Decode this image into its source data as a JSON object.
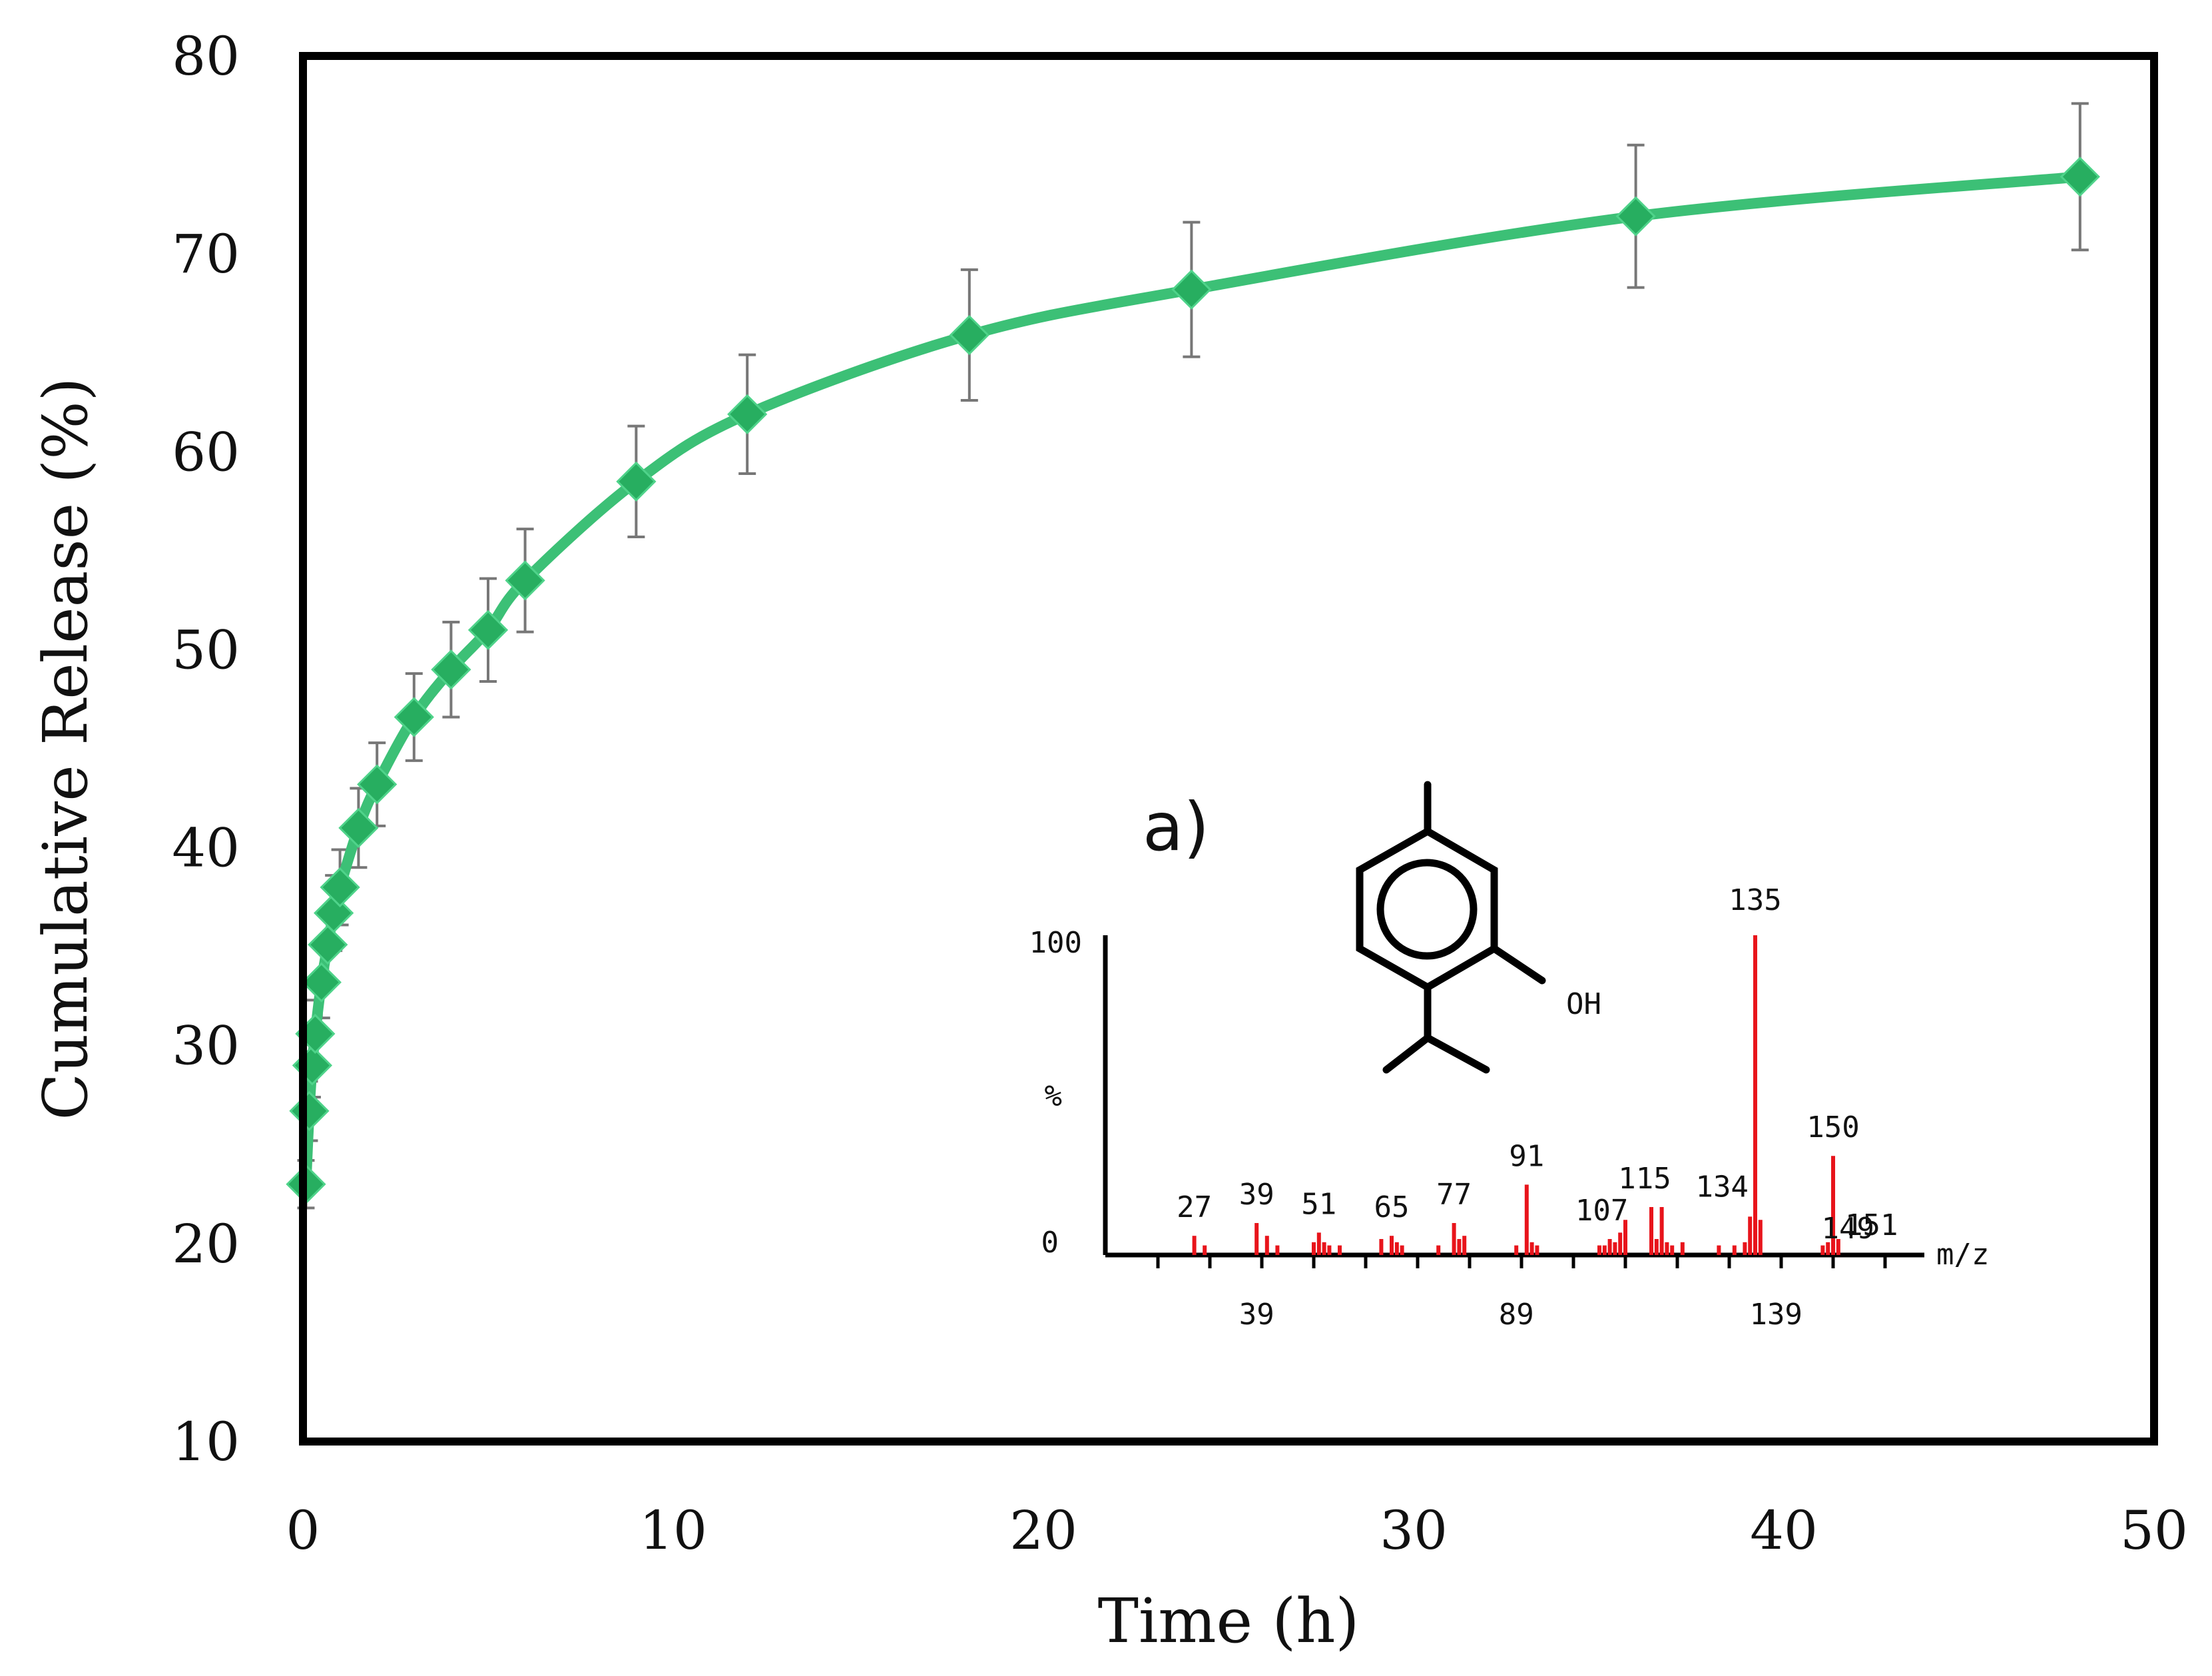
{
  "chart_data": {
    "type": "line",
    "title": "",
    "xlabel": "Time (h)",
    "ylabel": "Cumulative Release (%)",
    "xlim": [
      0,
      50
    ],
    "ylim": [
      10,
      80
    ],
    "xticks": [
      0,
      10,
      20,
      30,
      40,
      50
    ],
    "yticks": [
      10,
      20,
      30,
      40,
      50,
      60,
      70,
      80
    ],
    "grid": false,
    "marker": "diamond",
    "line_color": "#3cc076",
    "marker_color": "#27ae60",
    "error_bar_color": "#777777",
    "series": [
      {
        "name": "Cumulative Release",
        "x": [
          0.08,
          0.17,
          0.25,
          0.33,
          0.5,
          0.67,
          0.83,
          1,
          1.5,
          2,
          3,
          4,
          5,
          6,
          9,
          12,
          18,
          24,
          36,
          48
        ],
        "y": [
          23.0,
          26.7,
          29.0,
          30.6,
          33.2,
          35.1,
          36.7,
          38.0,
          41.0,
          43.2,
          46.6,
          49.0,
          51.0,
          53.5,
          58.5,
          61.9,
          65.9,
          68.2,
          71.9,
          73.9
        ],
        "err": [
          1.2,
          1.5,
          1.6,
          1.7,
          1.8,
          1.8,
          1.9,
          1.9,
          2.0,
          2.1,
          2.2,
          2.4,
          2.6,
          2.6,
          2.8,
          3.0,
          3.3,
          3.4,
          3.6,
          3.7
        ]
      }
    ],
    "inset": {
      "panel_label": "a)",
      "structure_label": "OH",
      "type": "mass-spectrum",
      "y_top_label": "100",
      "y_mid_label": "%",
      "y_zero_label": "0",
      "x_axis_label": "m/z",
      "x_tick_labels": [
        "39",
        "89",
        "139"
      ],
      "x_tick_values": [
        39,
        89,
        139
      ],
      "mz_range": [
        15,
        165
      ],
      "bar_color": "#e8141b",
      "peak_labels": [
        "27",
        "39",
        "51",
        "65",
        "77",
        "91",
        "107",
        "115",
        "134",
        "135",
        "149",
        "150",
        "151"
      ],
      "peaks": [
        {
          "mz": 27,
          "rel": 6
        },
        {
          "mz": 29,
          "rel": 3
        },
        {
          "mz": 39,
          "rel": 10
        },
        {
          "mz": 41,
          "rel": 6
        },
        {
          "mz": 43,
          "rel": 3
        },
        {
          "mz": 50,
          "rel": 4
        },
        {
          "mz": 51,
          "rel": 7
        },
        {
          "mz": 52,
          "rel": 4
        },
        {
          "mz": 53,
          "rel": 3
        },
        {
          "mz": 55,
          "rel": 3
        },
        {
          "mz": 63,
          "rel": 5
        },
        {
          "mz": 65,
          "rel": 6
        },
        {
          "mz": 66,
          "rel": 4
        },
        {
          "mz": 67,
          "rel": 3
        },
        {
          "mz": 74,
          "rel": 3
        },
        {
          "mz": 77,
          "rel": 10
        },
        {
          "mz": 78,
          "rel": 5
        },
        {
          "mz": 79,
          "rel": 6
        },
        {
          "mz": 89,
          "rel": 3
        },
        {
          "mz": 91,
          "rel": 22
        },
        {
          "mz": 92,
          "rel": 4
        },
        {
          "mz": 93,
          "rel": 3
        },
        {
          "mz": 105,
          "rel": 3
        },
        {
          "mz": 106,
          "rel": 3
        },
        {
          "mz": 107,
          "rel": 5
        },
        {
          "mz": 108,
          "rel": 4
        },
        {
          "mz": 109,
          "rel": 7
        },
        {
          "mz": 110,
          "rel": 11
        },
        {
          "mz": 115,
          "rel": 15
        },
        {
          "mz": 116,
          "rel": 5
        },
        {
          "mz": 117,
          "rel": 15
        },
        {
          "mz": 118,
          "rel": 4
        },
        {
          "mz": 119,
          "rel": 3
        },
        {
          "mz": 121,
          "rel": 4
        },
        {
          "mz": 128,
          "rel": 3
        },
        {
          "mz": 131,
          "rel": 3
        },
        {
          "mz": 133,
          "rel": 4
        },
        {
          "mz": 134,
          "rel": 12
        },
        {
          "mz": 135,
          "rel": 100
        },
        {
          "mz": 136,
          "rel": 11
        },
        {
          "mz": 148,
          "rel": 3
        },
        {
          "mz": 149,
          "rel": 4
        },
        {
          "mz": 150,
          "rel": 31
        },
        {
          "mz": 151,
          "rel": 5
        }
      ]
    }
  }
}
